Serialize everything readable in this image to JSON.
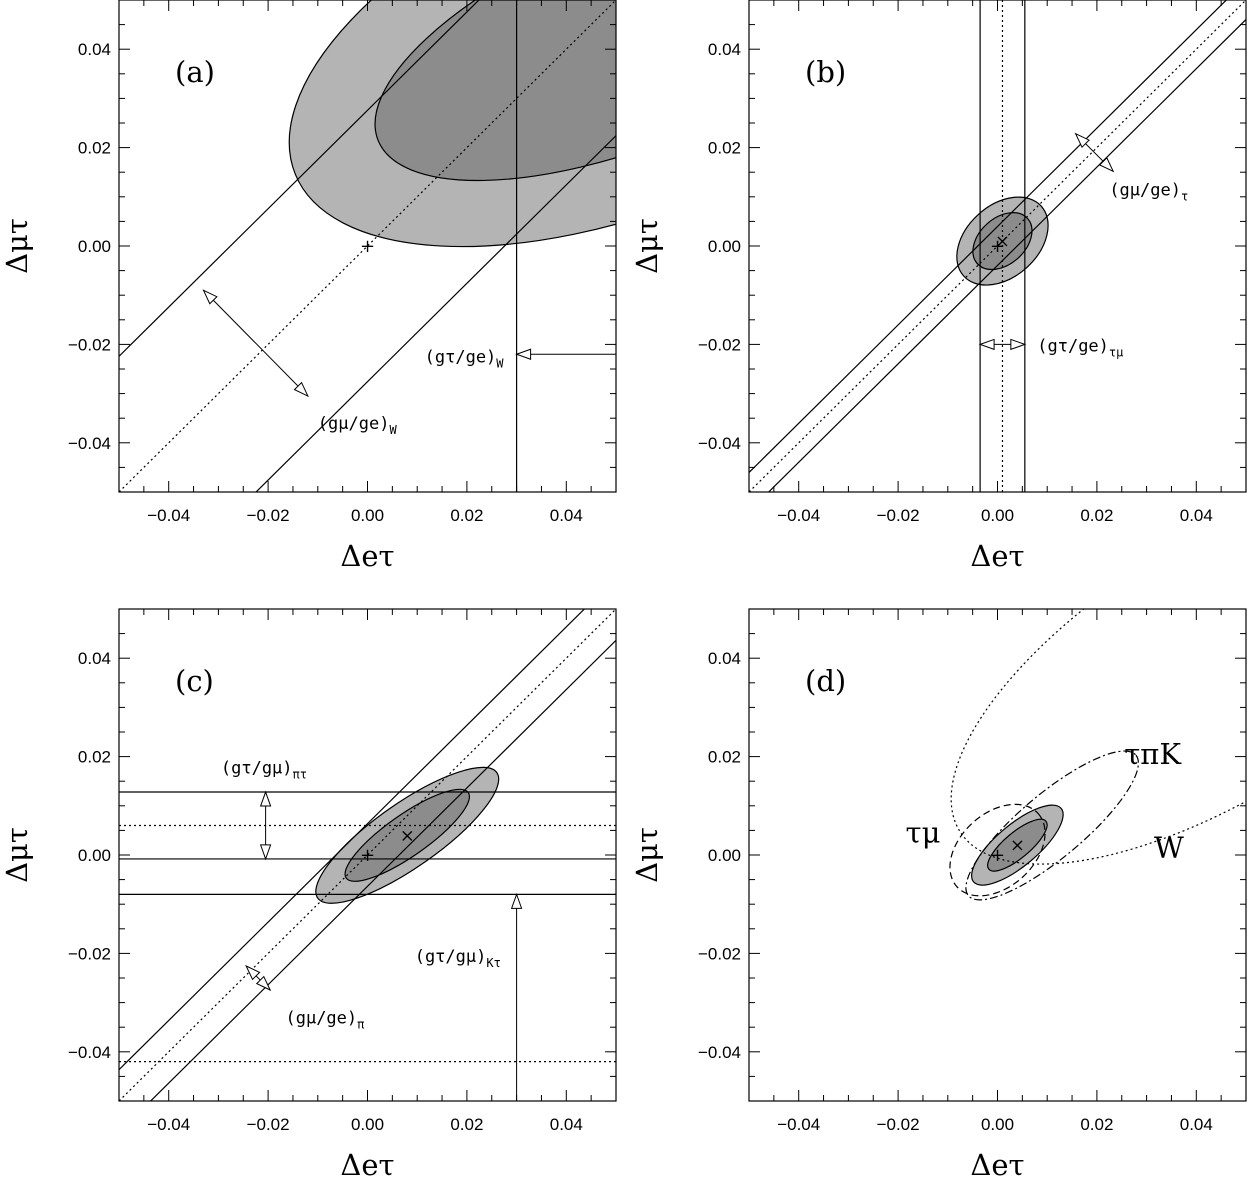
{
  "colors": {
    "outer_region": "#b4b4b4",
    "inner_region": "#8c8c8c",
    "line": "#000000"
  },
  "chart_data": [
    {
      "panel": "(a)",
      "type": "contour",
      "xlabel": "Δeτ",
      "ylabel": "Δμτ",
      "xlim": [
        -0.05,
        0.05
      ],
      "ylim": [
        -0.05,
        0.05
      ],
      "xticks": [
        "−0.04",
        "−0.02",
        "0.00",
        "0.02",
        "0.04"
      ],
      "yticks": [
        "−0.04",
        "−0.02",
        "0.00",
        "0.02",
        "0.04"
      ],
      "grid": false,
      "confidence_ellipses": [
        {
          "level": "outer",
          "center": [
            0.055,
            0.043
          ],
          "semi_axes": [
            0.075,
            0.035
          ],
          "angle_deg": 22
        },
        {
          "level": "inner",
          "center": [
            0.055,
            0.043
          ],
          "semi_axes": [
            0.057,
            0.022
          ],
          "angle_deg": 22
        }
      ],
      "bands": [
        {
          "label_main": "(gμ/ge)",
          "label_sub": "W",
          "kind": "diagonal",
          "center_intercept": 0.0,
          "half_width": 0.0195
        },
        {
          "label_main": "(gτ/ge)",
          "label_sub": "W",
          "kind": "vertical_limit",
          "x": 0.03
        }
      ],
      "points": [
        {
          "marker": "+",
          "x": 0.0,
          "y": 0.0
        }
      ]
    },
    {
      "panel": "(b)",
      "type": "contour",
      "xlabel": "Δeτ",
      "ylabel": "Δμτ",
      "xlim": [
        -0.05,
        0.05
      ],
      "ylim": [
        -0.05,
        0.05
      ],
      "xticks": [
        "−0.04",
        "−0.02",
        "0.00",
        "0.02",
        "0.04"
      ],
      "yticks": [
        "−0.04",
        "−0.02",
        "0.00",
        "0.02",
        "0.04"
      ],
      "grid": false,
      "confidence_ellipses": [
        {
          "level": "outer",
          "center": [
            0.001,
            0.001
          ],
          "semi_axes": [
            0.0105,
            0.0073
          ],
          "angle_deg": 42
        },
        {
          "level": "inner",
          "center": [
            0.001,
            0.001
          ],
          "semi_axes": [
            0.0068,
            0.0047
          ],
          "angle_deg": 42
        }
      ],
      "bands": [
        {
          "label_main": "(gμ/ge)",
          "label_sub": "τ",
          "kind": "diagonal",
          "center_intercept": 0.0,
          "half_width": 0.0028
        },
        {
          "label_main": "(gτ/ge)",
          "label_sub": "τμ",
          "kind": "vertical",
          "center": 0.001,
          "half_width": 0.0045
        }
      ],
      "points": [
        {
          "marker": "+",
          "x": 0.0,
          "y": 0.0
        },
        {
          "marker": "×",
          "x": 0.001,
          "y": 0.001
        }
      ]
    },
    {
      "panel": "(c)",
      "type": "contour",
      "xlabel": "Δeτ",
      "ylabel": "Δμτ",
      "xlim": [
        -0.05,
        0.05
      ],
      "ylim": [
        -0.05,
        0.05
      ],
      "xticks": [
        "−0.04",
        "−0.02",
        "0.00",
        "0.02",
        "0.04"
      ],
      "yticks": [
        "−0.04",
        "−0.02",
        "0.00",
        "0.02",
        "0.04"
      ],
      "grid": false,
      "confidence_ellipses": [
        {
          "level": "outer",
          "center": [
            0.008,
            0.004
          ],
          "semi_axes": [
            0.022,
            0.0065
          ],
          "angle_deg": 35
        },
        {
          "level": "inner",
          "center": [
            0.008,
            0.004
          ],
          "semi_axes": [
            0.015,
            0.0042
          ],
          "angle_deg": 35
        }
      ],
      "bands": [
        {
          "label_main": "(gμ/ge)",
          "label_sub": "π",
          "kind": "diagonal",
          "center_intercept": 0.0,
          "half_width": 0.0045
        },
        {
          "label_main": "(gτ/gμ)",
          "label_sub": "πτ",
          "kind": "horizontal",
          "center": 0.006,
          "half_width": 0.0068
        },
        {
          "label_main": "(gτ/gμ)",
          "label_sub": "Kτ",
          "kind": "horizontal_limit",
          "y": -0.008,
          "dotted_y": -0.042
        }
      ],
      "points": [
        {
          "marker": "+",
          "x": 0.0,
          "y": 0.0
        },
        {
          "marker": "×",
          "x": 0.008,
          "y": 0.004
        }
      ]
    },
    {
      "panel": "(d)",
      "type": "contour",
      "xlabel": "Δeτ",
      "ylabel": "Δμτ",
      "xlim": [
        -0.05,
        0.05
      ],
      "ylim": [
        -0.05,
        0.05
      ],
      "xticks": [
        "−0.04",
        "−0.02",
        "0.00",
        "0.02",
        "0.04"
      ],
      "yticks": [
        "−0.04",
        "−0.02",
        "0.00",
        "0.02",
        "0.04"
      ],
      "grid": false,
      "confidence_ellipses": [
        {
          "level": "outer",
          "center": [
            0.004,
            0.002
          ],
          "semi_axes": [
            0.0115,
            0.0042
          ],
          "angle_deg": 40
        },
        {
          "level": "inner",
          "center": [
            0.004,
            0.002
          ],
          "semi_axes": [
            0.0075,
            0.0026
          ],
          "angle_deg": 40
        }
      ],
      "constraint_contours": [
        {
          "label": "W",
          "style": "dotted",
          "center": [
            0.045,
            0.038
          ],
          "semi_axes": [
            0.062,
            0.026
          ],
          "angle_deg": 32
        },
        {
          "label": "τπK",
          "style": "dash-dot",
          "center": [
            0.011,
            0.006
          ],
          "semi_axes": [
            0.022,
            0.0065
          ],
          "angle_deg": 40
        },
        {
          "label": "τμ",
          "style": "dashed",
          "center": [
            0.0,
            0.001
          ],
          "semi_axes": [
            0.011,
            0.0075
          ],
          "angle_deg": 42
        }
      ],
      "points": [
        {
          "marker": "+",
          "x": 0.0,
          "y": 0.0
        },
        {
          "marker": "×",
          "x": 0.004,
          "y": 0.002
        }
      ]
    }
  ]
}
